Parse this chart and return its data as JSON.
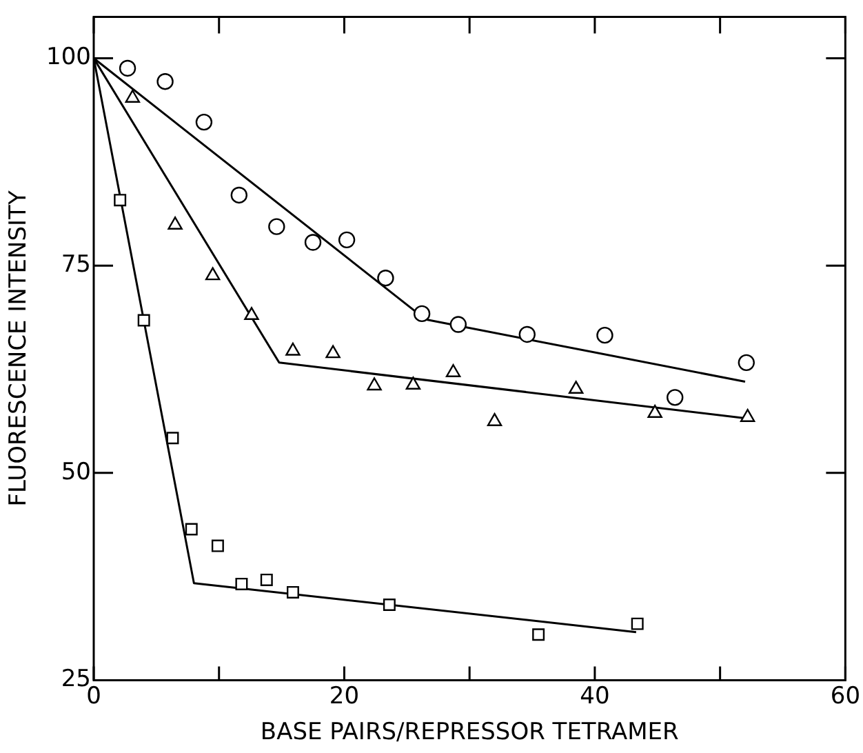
{
  "chart_data": {
    "type": "scatter",
    "xlabel": "BASE PAIRS/REPRESSOR TETRAMER",
    "ylabel": "FLUORESCENCE INTENSITY",
    "xlim": [
      0,
      60
    ],
    "ylim": [
      25,
      105
    ],
    "xticks": [
      0,
      {
        "value": 10,
        "label": null
      },
      20,
      {
        "value": 30,
        "label": null
      },
      40,
      {
        "value": 50,
        "label": null
      },
      60
    ],
    "yticks": [
      25,
      50,
      75,
      100
    ],
    "grid": false,
    "legend": false,
    "series": [
      {
        "type": "scatter",
        "marker": "circle",
        "color": "#000000",
        "x": [
          2.7,
          5.7,
          8.8,
          11.6,
          14.6,
          17.5,
          20.2,
          23.3,
          26.2,
          29.1,
          34.6,
          40.8,
          46.4,
          52.1
        ],
        "values": [
          98.8,
          97.2,
          92.3,
          83.5,
          79.7,
          77.8,
          78.1,
          73.5,
          69.2,
          67.9,
          66.7,
          66.6,
          59.1,
          63.3
        ]
      },
      {
        "type": "scatter",
        "marker": "triangle",
        "color": "#000000",
        "x": [
          3.1,
          6.5,
          9.5,
          12.6,
          15.9,
          19.1,
          22.4,
          25.5,
          28.7,
          32.0,
          38.5,
          44.8,
          52.2
        ],
        "values": [
          95.2,
          79.9,
          73.8,
          69.0,
          64.7,
          64.4,
          60.5,
          60.6,
          62.1,
          56.2,
          60.1,
          57.2,
          56.7
        ]
      },
      {
        "type": "scatter",
        "marker": "square",
        "color": "#000000",
        "x": [
          2.1,
          4.0,
          6.3,
          7.8,
          9.9,
          11.8,
          13.8,
          15.9,
          23.6,
          35.5,
          43.4
        ],
        "values": [
          82.9,
          68.4,
          54.2,
          43.2,
          41.2,
          36.6,
          37.1,
          35.6,
          34.1,
          30.5,
          31.8
        ]
      },
      {
        "type": "line",
        "marker": "none",
        "color": "#000000",
        "x": [
          0,
          26.5,
          52
        ],
        "values": [
          100,
          68.5,
          61
        ]
      },
      {
        "type": "line",
        "marker": "none",
        "color": "#000000",
        "x": [
          0,
          14.8,
          52
        ],
        "values": [
          100,
          63.3,
          56.6
        ]
      },
      {
        "type": "line",
        "marker": "none",
        "color": "#000000",
        "x": [
          0,
          8.0,
          43.3
        ],
        "values": [
          100,
          36.7,
          30.8
        ]
      }
    ]
  }
}
